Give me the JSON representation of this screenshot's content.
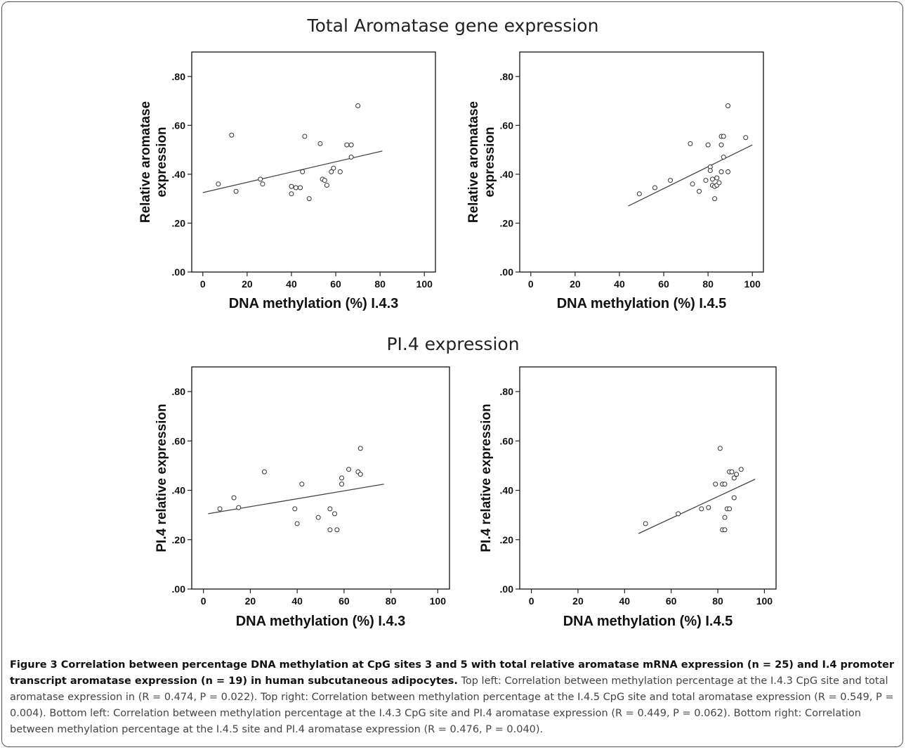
{
  "titles": {
    "top": "Total Aromatase gene expression",
    "bottom": "PI.4 expression"
  },
  "caption": {
    "head": "Figure 3 Correlation between percentage DNA methylation at CpG sites 3 and 5 with total relative aromatase mRNA expression (n = 25) and I.4 promoter transcript aromatase expression (n = 19) in human subcutaneous adipocytes.",
    "body": " Top left: Correlation between methylation percentage at the I.4.3 CpG site and total aromatase expression in (R = 0.474, P = 0.022). Top right: Correlation between methylation percentage at the I.4.5 CpG site and total aromatase expression (R = 0.549, P = 0.004). Bottom left: Correlation between methylation percentage at the I.4.3 CpG site and PI.4 aromatase expression (R = 0.449, P = 0.062). Bottom right: Correlation between methylation percentage at the I.4.5 site and PI.4 aromatase expression (R = 0.476, P = 0.040)."
  },
  "chart_data": [
    {
      "type": "scatter",
      "xlabel": "DNA methylation (%) I.4.3",
      "ylabel_lines": [
        "Relative aromatase",
        "expression"
      ],
      "xlim": [
        -5,
        105
      ],
      "ylim": [
        0,
        0.9
      ],
      "xticks": [
        "0",
        "20",
        "40",
        "60",
        "80",
        "100"
      ],
      "yticks": [
        ".00",
        ".20",
        ".40",
        ".60",
        ".80"
      ],
      "points": [
        [
          7,
          0.36
        ],
        [
          13,
          0.56
        ],
        [
          15,
          0.33
        ],
        [
          26,
          0.38
        ],
        [
          27,
          0.36
        ],
        [
          40,
          0.35
        ],
        [
          40,
          0.32
        ],
        [
          42,
          0.345
        ],
        [
          44,
          0.345
        ],
        [
          45,
          0.41
        ],
        [
          46,
          0.555
        ],
        [
          48,
          0.3
        ],
        [
          53,
          0.525
        ],
        [
          54,
          0.38
        ],
        [
          55,
          0.375
        ],
        [
          56,
          0.355
        ],
        [
          58,
          0.41
        ],
        [
          59,
          0.425
        ],
        [
          62,
          0.41
        ],
        [
          65,
          0.52
        ],
        [
          67,
          0.52
        ],
        [
          67,
          0.47
        ],
        [
          70,
          0.68
        ]
      ],
      "fit_line": [
        [
          0,
          0.325
        ],
        [
          81,
          0.495
        ]
      ],
      "r": 0.474,
      "p": 0.022
    },
    {
      "type": "scatter",
      "xlabel": "DNA methylation (%) I.4.5",
      "ylabel_lines": [
        "Relative aromatase",
        "expression"
      ],
      "xlim": [
        -5,
        105
      ],
      "ylim": [
        0,
        0.9
      ],
      "xticks": [
        "0",
        "20",
        "40",
        "60",
        "80",
        "100"
      ],
      "yticks": [
        ".00",
        ".20",
        ".40",
        ".60",
        ".80"
      ],
      "points": [
        [
          49,
          0.32
        ],
        [
          56,
          0.345
        ],
        [
          63,
          0.375
        ],
        [
          72,
          0.525
        ],
        [
          73,
          0.36
        ],
        [
          76,
          0.33
        ],
        [
          79,
          0.375
        ],
        [
          80,
          0.52
        ],
        [
          81,
          0.43
        ],
        [
          81,
          0.415
        ],
        [
          82,
          0.38
        ],
        [
          82,
          0.355
        ],
        [
          83,
          0.35
        ],
        [
          83,
          0.3
        ],
        [
          84,
          0.355
        ],
        [
          84,
          0.385
        ],
        [
          85,
          0.365
        ],
        [
          86,
          0.555
        ],
        [
          86,
          0.52
        ],
        [
          86,
          0.41
        ],
        [
          87,
          0.555
        ],
        [
          87,
          0.47
        ],
        [
          89,
          0.68
        ],
        [
          89,
          0.41
        ],
        [
          97,
          0.55
        ]
      ],
      "fit_line": [
        [
          44,
          0.27
        ],
        [
          100,
          0.52
        ]
      ],
      "r": 0.549,
      "p": 0.004
    },
    {
      "type": "scatter",
      "xlabel": "DNA methylation (%) I.4.3",
      "ylabel_lines": [
        "PI.4 relative expression"
      ],
      "xlim": [
        -5,
        105
      ],
      "ylim": [
        0,
        0.9
      ],
      "xticks": [
        "0",
        "20",
        "40",
        "60",
        "80",
        "100"
      ],
      "yticks": [
        ".00",
        ".20",
        ".40",
        ".60",
        ".80"
      ],
      "points": [
        [
          7,
          0.325
        ],
        [
          13,
          0.37
        ],
        [
          15,
          0.33
        ],
        [
          26,
          0.475
        ],
        [
          39,
          0.325
        ],
        [
          40,
          0.265
        ],
        [
          42,
          0.425
        ],
        [
          49,
          0.29
        ],
        [
          54,
          0.325
        ],
        [
          54,
          0.24
        ],
        [
          56,
          0.305
        ],
        [
          57,
          0.24
        ],
        [
          59,
          0.45
        ],
        [
          59,
          0.425
        ],
        [
          62,
          0.485
        ],
        [
          66,
          0.475
        ],
        [
          67,
          0.465
        ],
        [
          67,
          0.57
        ]
      ],
      "fit_line": [
        [
          2,
          0.305
        ],
        [
          77,
          0.425
        ]
      ],
      "r": 0.449,
      "p": 0.062
    },
    {
      "type": "scatter",
      "xlabel": "DNA methylation (%) I.4.5",
      "ylabel_lines": [
        "PI.4 relative expression"
      ],
      "xlim": [
        -5,
        105
      ],
      "ylim": [
        0,
        0.9
      ],
      "xticks": [
        "0",
        "20",
        "40",
        "60",
        "80",
        "100"
      ],
      "yticks": [
        ".00",
        ".20",
        ".40",
        ".60",
        ".80"
      ],
      "points": [
        [
          49,
          0.265
        ],
        [
          63,
          0.305
        ],
        [
          73,
          0.325
        ],
        [
          76,
          0.33
        ],
        [
          79,
          0.425
        ],
        [
          81,
          0.57
        ],
        [
          82,
          0.425
        ],
        [
          82,
          0.24
        ],
        [
          83,
          0.425
        ],
        [
          83,
          0.29
        ],
        [
          83,
          0.24
        ],
        [
          84,
          0.325
        ],
        [
          85,
          0.325
        ],
        [
          85,
          0.475
        ],
        [
          86,
          0.475
        ],
        [
          87,
          0.45
        ],
        [
          87,
          0.37
        ],
        [
          88,
          0.465
        ],
        [
          90,
          0.485
        ]
      ],
      "fit_line": [
        [
          46,
          0.225
        ],
        [
          96,
          0.445
        ]
      ],
      "r": 0.476,
      "p": 0.04
    }
  ]
}
